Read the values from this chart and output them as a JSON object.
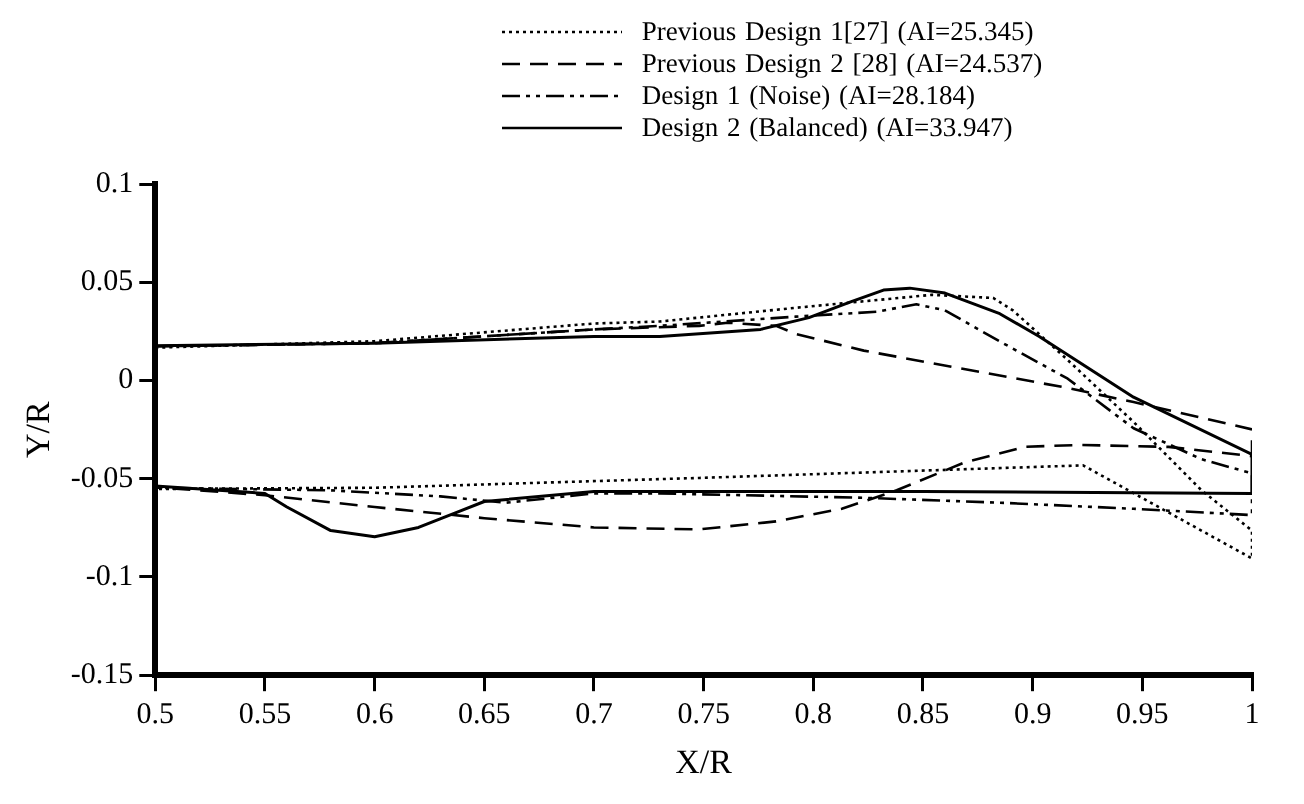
{
  "chart_data": {
    "type": "line",
    "xlabel": "X/R",
    "ylabel": "Y/R",
    "legend": "top",
    "xlim": [
      0.5,
      1
    ],
    "xticks": [
      0.5,
      0.55,
      0.6,
      0.65,
      0.7,
      0.75,
      0.8,
      0.85,
      0.9,
      0.95,
      1
    ],
    "ylim": [
      -0.15,
      0.1
    ],
    "yticks": [
      -0.15,
      -0.1,
      -0.05,
      0,
      0.05,
      0.1
    ],
    "series": [
      {
        "name": "Previous Design 1[27] (AI=25.345)",
        "color": "#000000",
        "line_style": "dotted",
        "x": [
          0.5,
          0.6,
          0.7,
          0.73,
          0.792,
          0.854,
          0.882,
          0.891,
          0.916,
          0.946,
          0.977,
          1.0,
          1.0,
          0.923,
          0.748,
          0.6,
          0.5
        ],
        "values": [
          0.0167,
          0.02,
          0.029,
          0.03,
          0.037,
          0.0436,
          0.042,
          0.0357,
          0.0104,
          -0.0211,
          -0.0559,
          -0.0764,
          -0.0906,
          -0.0432,
          -0.0496,
          -0.0546,
          -0.0552
        ]
      },
      {
        "name": "Previous Design 2 [28] (AI=24.537)",
        "color": "#000000",
        "line_style": "dashed",
        "x": [
          0.5,
          0.6,
          0.7,
          0.748,
          0.761,
          0.783,
          0.792,
          0.823,
          0.854,
          0.885,
          0.916,
          0.946,
          1.0,
          1.0,
          0.962,
          0.922,
          0.897,
          0.869,
          0.838,
          0.813,
          0.783,
          0.748,
          0.7,
          0.65,
          0.6,
          0.55,
          0.5
        ],
        "values": [
          0.0174,
          0.019,
          0.026,
          0.0278,
          0.0294,
          0.0278,
          0.0237,
          0.0152,
          0.0088,
          0.0025,
          -0.0038,
          -0.011,
          -0.0249,
          -0.0385,
          -0.0338,
          -0.0328,
          -0.0337,
          -0.0417,
          -0.0559,
          -0.0653,
          -0.0717,
          -0.0758,
          -0.0748,
          -0.0701,
          -0.0644,
          -0.0584,
          -0.0543
        ]
      },
      {
        "name": "Design 1 (Noise) (AI=28.184)",
        "color": "#000000",
        "line_style": "dashdot",
        "x": [
          0.5,
          0.6,
          0.7,
          0.73,
          0.792,
          0.829,
          0.847,
          0.86,
          0.885,
          0.916,
          0.946,
          0.977,
          1.0,
          1.0,
          0.946,
          0.885,
          0.823,
          0.73,
          0.7,
          0.66,
          0.63,
          0.58,
          0.5
        ],
        "values": [
          0.0174,
          0.019,
          0.026,
          0.0278,
          0.0325,
          0.035,
          0.0388,
          0.0357,
          0.0199,
          0.0009,
          -0.0243,
          -0.0401,
          -0.0473,
          -0.0685,
          -0.0653,
          -0.0622,
          -0.0597,
          -0.0575,
          -0.0575,
          -0.0622,
          -0.059,
          -0.0559,
          -0.0546
        ]
      },
      {
        "name": "Design 2 (Balanced) (AI=33.947)",
        "color": "#000000",
        "line_style": "solid",
        "x": [
          0.5,
          0.6,
          0.7,
          0.73,
          0.776,
          0.798,
          0.817,
          0.832,
          0.844,
          0.86,
          0.885,
          0.903,
          0.946,
          1.0,
          1.0,
          0.85,
          0.7,
          0.65,
          0.62,
          0.6,
          0.58,
          0.56,
          0.55,
          0.5
        ],
        "values": [
          0.0177,
          0.019,
          0.0224,
          0.0224,
          0.026,
          0.032,
          0.04,
          0.046,
          0.047,
          0.0445,
          0.034,
          0.0224,
          -0.0085,
          -0.0376,
          -0.0575,
          -0.0565,
          -0.0565,
          -0.0616,
          -0.0748,
          -0.0795,
          -0.0764,
          -0.0644,
          -0.0575,
          -0.0537
        ]
      }
    ]
  }
}
